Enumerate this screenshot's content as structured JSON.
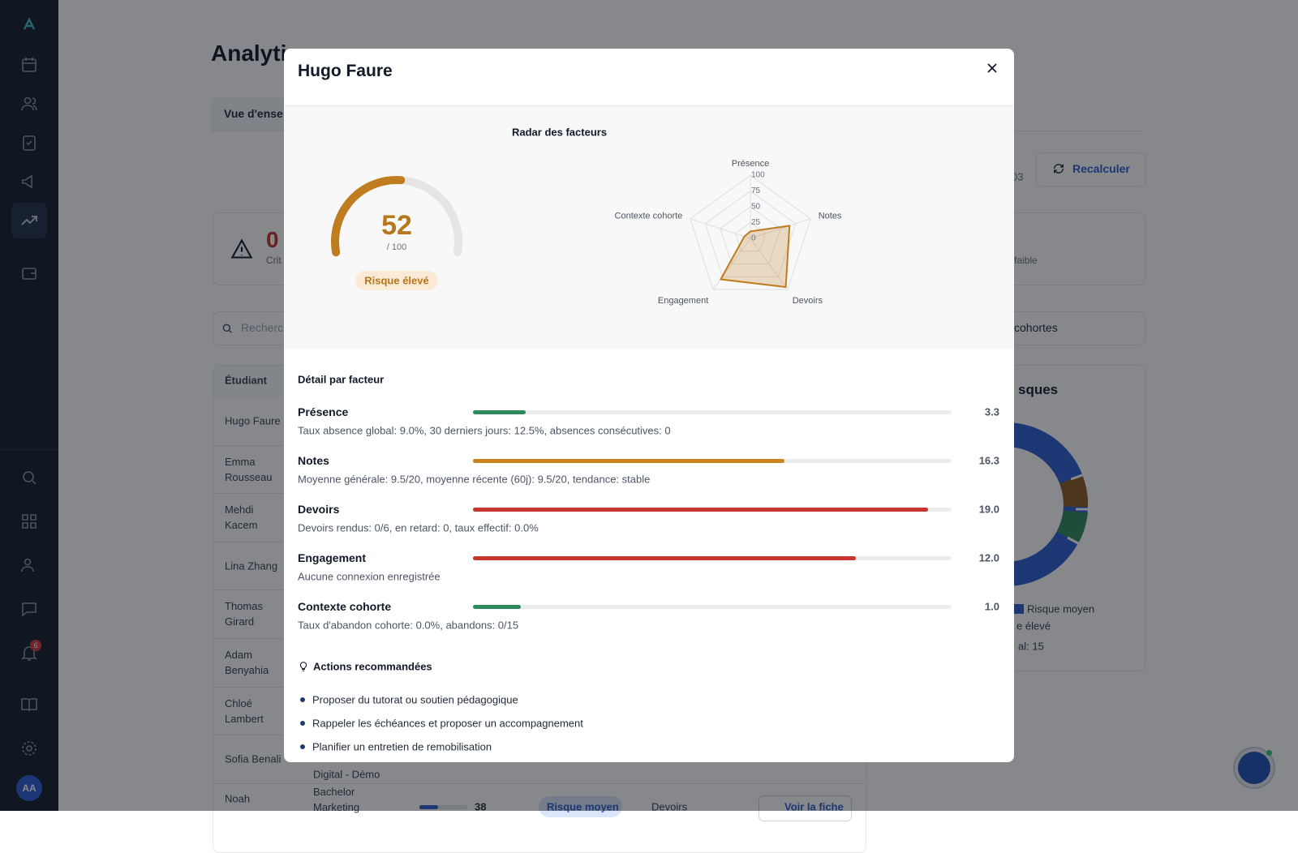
{
  "sidebar": {
    "notification_count": 6,
    "avatar": "AA"
  },
  "background": {
    "title": "Analytic",
    "tab": "Vue d'ense",
    "date_fragment": "03",
    "recalc_button": "Recalculer",
    "stat_value": 0,
    "stat_label": "Crit",
    "stat_right_label": "faible",
    "search_placeholder": "Recherc",
    "cohort_filter": "cohortes",
    "table_header": "Étudiant",
    "students": [
      "Hugo Faure",
      "Emma Rousseau",
      "Mehdi Kacem",
      "Lina Zhang",
      "Thomas Girard",
      "Adam Benyahia",
      "Chloé Lambert",
      "Sofia Benali"
    ],
    "sofia_program_fragment": "Digital - Démo",
    "last_row": {
      "name": "Noah",
      "program": "Bachelor Marketing",
      "score": 38,
      "badge": "Risque moyen",
      "factor": "Devoirs",
      "button": "Voir la fiche"
    },
    "donut_title": "sques",
    "legend": [
      "Risque moyen",
      "e élevé"
    ],
    "total_fragment": "al: 15"
  },
  "modal": {
    "title": "Hugo Faure",
    "gauge": {
      "value": 52,
      "max": {
        "value": 100,
        "label": "/ 100"
      },
      "badge": "Risque élevé",
      "color": "#c07d1f"
    },
    "radar": {
      "type": "radar",
      "title": "Radar des facteurs",
      "categories": [
        "Présence",
        "Notes",
        "Devoirs",
        "Engagement",
        "Contexte cohorte"
      ],
      "rlim": [
        0,
        100
      ],
      "rticks": [
        0,
        25,
        50,
        75,
        100
      ],
      "series": [
        {
          "color": "#c07d1f",
          "values": [
            11,
            65,
            95,
            80,
            10
          ]
        }
      ]
    },
    "details": {
      "title": "Détail par facteur",
      "factors": [
        {
          "name": "Présence",
          "score": "3.3",
          "color": "#2f8a5b",
          "description": "Taux absence global: 9.0%, 30 derniers jours: 12.5%, absences consécutives: 0"
        },
        {
          "name": "Notes",
          "score": "16.3",
          "color": "#c7841f",
          "description": "Moyenne générale: 9.5/20, moyenne récente (60j): 9.5/20, tendance: stable"
        },
        {
          "name": "Devoirs",
          "score": "19.0",
          "color": "#c8352f",
          "description": "Devoirs rendus: 0/6, en retard: 0, taux effectif: 0.0%"
        },
        {
          "name": "Engagement",
          "score": "12.0",
          "color": "#c8352f",
          "description": "Aucune connexion enregistrée"
        },
        {
          "name": "Contexte cohorte",
          "score": "1.0",
          "color": "#2f8a5b",
          "description": "Taux d'abandon cohorte: 0.0%, abandons: 0/15"
        }
      ]
    },
    "actions": {
      "title": "Actions recommandées",
      "items": [
        "Proposer du tutorat ou soutien pédagogique",
        "Rappeler les échéances et proposer un accompagnement",
        "Planifier un entretien de remobilisation"
      ]
    }
  }
}
